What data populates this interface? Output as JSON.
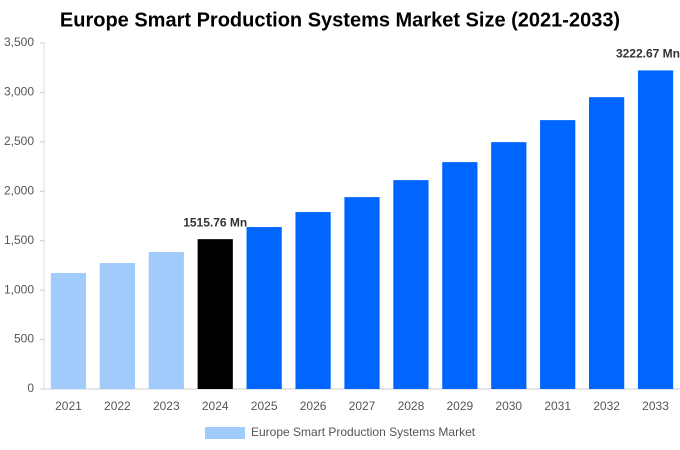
{
  "chart_data": {
    "type": "bar",
    "title": "Europe Smart Production Systems Market Size (2021-2033)",
    "categories": [
      "2021",
      "2022",
      "2023",
      "2024",
      "2025",
      "2026",
      "2027",
      "2028",
      "2029",
      "2030",
      "2031",
      "2032",
      "2033"
    ],
    "series": [
      {
        "name": "Europe Smart Production Systems Market",
        "color": "#a0cbfb",
        "colors": [
          "#a0cbfb",
          "#a0cbfb",
          "#a0cbfb",
          "#000000",
          "#0066ff",
          "#0066ff",
          "#0066ff",
          "#0066ff",
          "#0066ff",
          "#0066ff",
          "#0066ff",
          "#0066ff",
          "#0066ff"
        ],
        "values": [
          1173,
          1274,
          1385,
          1515.76,
          1638,
          1790,
          1941,
          2113,
          2295,
          2497,
          2720,
          2952,
          3222.67
        ],
        "value_labels": [
          null,
          null,
          null,
          "1515.76 Mn",
          null,
          null,
          null,
          null,
          null,
          null,
          null,
          null,
          "3222.67 Mn"
        ]
      }
    ],
    "ylim": [
      0,
      3500
    ],
    "yticks": [
      0,
      500,
      {
        "value": 1000,
        "label": "1,000"
      },
      {
        "value": 1500,
        "label": "1,500"
      },
      {
        "value": 2000,
        "label": "2,000"
      },
      {
        "value": 2500,
        "label": "2,500"
      },
      {
        "value": 3000,
        "label": "3,000"
      },
      {
        "value": 3500,
        "label": "3,500"
      }
    ],
    "grid": false
  }
}
